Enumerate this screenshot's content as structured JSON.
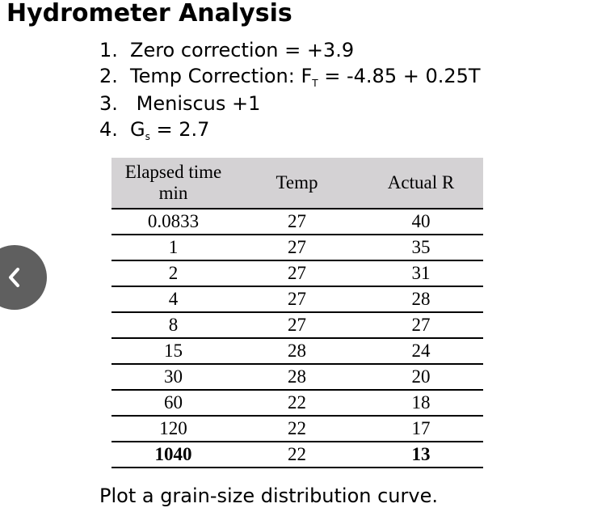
{
  "title": "Hydrometer Analysis",
  "given": [
    {
      "num": "1.",
      "text": "Zero correction = +3.9"
    },
    {
      "num": "2.",
      "pre": "Temp Correction: F",
      "sub": "T",
      "post": " = -4.85 + 0.25T"
    },
    {
      "num": "3.",
      "text": " Meniscus +1"
    },
    {
      "num": "4.",
      "pre": "G",
      "sub": "s",
      "post": " = 2.7"
    }
  ],
  "table": {
    "headers": [
      "Elapsed time min",
      "Temp",
      "Actual R"
    ],
    "rows": [
      [
        "0.0833",
        "27",
        "40"
      ],
      [
        "1",
        "27",
        "35"
      ],
      [
        "2",
        "27",
        "31"
      ],
      [
        "4",
        "27",
        "28"
      ],
      [
        "8",
        "27",
        "27"
      ],
      [
        "15",
        "28",
        "24"
      ],
      [
        "30",
        "28",
        "20"
      ],
      [
        "60",
        "22",
        "18"
      ],
      [
        "120",
        "22",
        "17"
      ],
      [
        "1040",
        "22",
        "13"
      ]
    ]
  },
  "footer": "Plot a grain-size distribution curve.",
  "nav": {
    "back_icon": "chevron-left-icon",
    "button_color": "#5f5f5f"
  }
}
